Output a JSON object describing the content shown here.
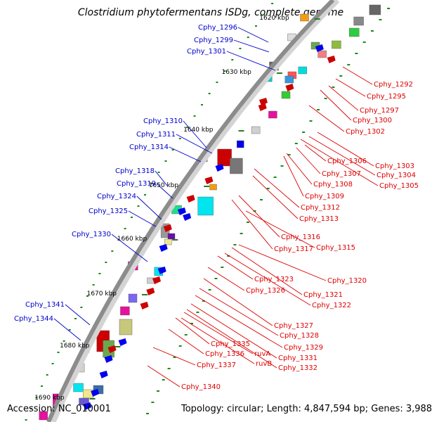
{
  "title": "Clostridium phytofermentans ISDg, complete genome",
  "footer": {
    "accession": "Accession: NC_010001",
    "stats": "Topology: circular; Length: 4,847,594 bp; Genes: 3,988"
  },
  "colors": {
    "backbone": "#8c8c8c",
    "left_labels": "#0000cc",
    "right_labels": "#dd0000",
    "gc_dots": "#1a8a1a"
  },
  "scale_ticks": [
    "1620 kbp",
    "1630 kbp",
    "1640 kbp",
    "1650 kbp",
    "1660 kbp",
    "1670 kbp",
    "1680 kbp",
    "1690 kbp"
  ],
  "genes_left": [
    "Cphy_1296",
    "Cphy_1299",
    "Cphy_1301",
    "Cphy_1310",
    "Cphy_1311",
    "Cphy_1314",
    "Cphy_1318",
    "Cphy_1319",
    "Cphy_1324",
    "Cphy_1325",
    "Cphy_1330",
    "Cphy_1341",
    "Cphy_1344"
  ],
  "genes_right": [
    "Cphy_1292",
    "Cphy_1295",
    "Cphy_1297",
    "Cphy_1300",
    "Cphy_1302",
    "Cphy_1303",
    "Cphy_1304",
    "Cphy_1305",
    "Cphy_1306",
    "Cphy_1307",
    "Cphy_1308",
    "Cphy_1309",
    "Cphy_1312",
    "Cphy_1313",
    "Cphy_1316",
    "Cphy_1317",
    "Cphy_1315",
    "Cphy_1320",
    "Cphy_1321",
    "Cphy_1322",
    "Cphy_1323",
    "Cphy_1326",
    "Cphy_1327",
    "Cphy_1328",
    "Cphy_1329",
    "Cphy_1331",
    "Cphy_1332",
    "Cphy_1335",
    "Cphy_1336",
    "Cphy_1337",
    "Cphy_1340",
    "ruvA",
    "ruvB"
  ]
}
